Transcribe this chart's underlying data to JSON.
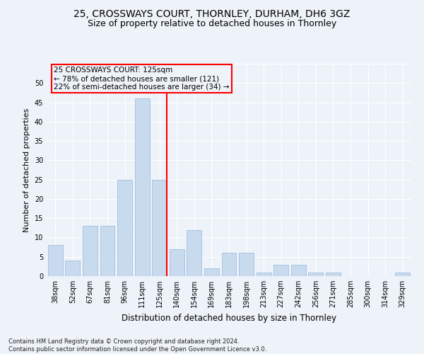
{
  "title1": "25, CROSSWAYS COURT, THORNLEY, DURHAM, DH6 3GZ",
  "title2": "Size of property relative to detached houses in Thornley",
  "xlabel": "Distribution of detached houses by size in Thornley",
  "ylabel": "Number of detached properties",
  "categories": [
    "38sqm",
    "52sqm",
    "67sqm",
    "81sqm",
    "96sqm",
    "111sqm",
    "125sqm",
    "140sqm",
    "154sqm",
    "169sqm",
    "183sqm",
    "198sqm",
    "213sqm",
    "227sqm",
    "242sqm",
    "256sqm",
    "271sqm",
    "285sqm",
    "300sqm",
    "314sqm",
    "329sqm"
  ],
  "values": [
    8,
    4,
    13,
    13,
    25,
    46,
    25,
    7,
    12,
    2,
    6,
    6,
    1,
    3,
    3,
    1,
    1,
    0,
    0,
    0,
    1
  ],
  "bar_color": "#c8daee",
  "bar_edge_color": "#a8c4e0",
  "highlight_index": 6,
  "red_line_index": 6,
  "annotation_title": "25 CROSSWAYS COURT: 125sqm",
  "annotation_line1": "← 78% of detached houses are smaller (121)",
  "annotation_line2": "22% of semi-detached houses are larger (34) →",
  "footer1": "Contains HM Land Registry data © Crown copyright and database right 2024.",
  "footer2": "Contains public sector information licensed under the Open Government Licence v3.0.",
  "ylim": [
    0,
    55
  ],
  "yticks": [
    0,
    5,
    10,
    15,
    20,
    25,
    30,
    35,
    40,
    45,
    50,
    55
  ],
  "bg_color": "#eef2f9",
  "grid_color": "#ffffff",
  "title1_fontsize": 10,
  "title2_fontsize": 9,
  "xlabel_fontsize": 8.5,
  "ylabel_fontsize": 8,
  "tick_fontsize": 7,
  "footer_fontsize": 6,
  "ann_fontsize": 7.5
}
